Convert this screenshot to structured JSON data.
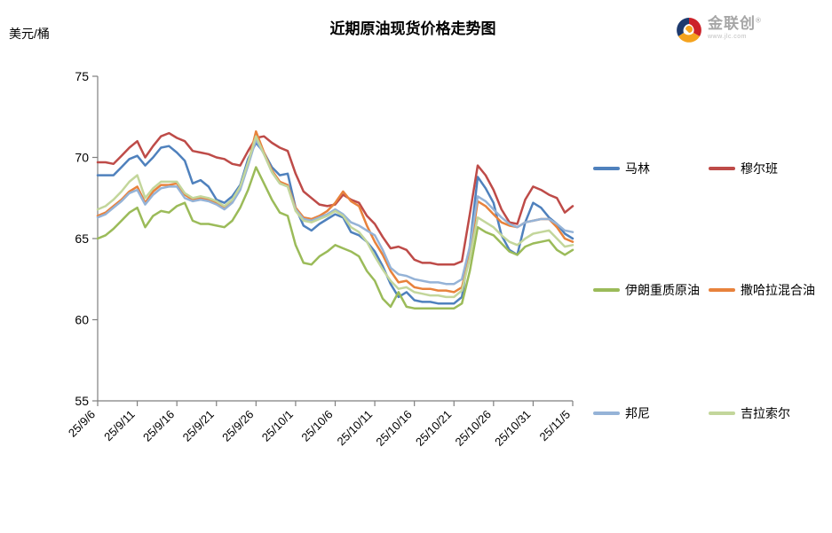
{
  "page": {
    "chart_title": "近期原油现货价格走势图",
    "unit_label": "美元/桶"
  },
  "logo": {
    "name": "金联创",
    "registered": "®",
    "subtext": "www.jlc.com",
    "icon_colors": {
      "blue": "#1d3a6e",
      "red": "#cc2229",
      "yellow": "#f5a31e"
    }
  },
  "chart_data": {
    "type": "line",
    "title": "近期原油现货价格走势图",
    "xlabel": "",
    "ylabel": "美元/桶",
    "ylim": [
      55,
      75
    ],
    "yticks": [
      55,
      60,
      65,
      70,
      75
    ],
    "grid": false,
    "legend_position": "right",
    "xtick_every": 5,
    "xtick_labels": [
      "25/9/6",
      "25/9/11",
      "25/9/16",
      "25/9/21",
      "25/9/26",
      "25/10/1",
      "25/10/6",
      "25/10/11",
      "25/10/16",
      "25/10/21",
      "25/10/26",
      "25/10/31",
      "25/11/5"
    ],
    "x": [
      "25/9/6",
      "25/9/7",
      "25/9/8",
      "25/9/9",
      "25/9/10",
      "25/9/11",
      "25/9/12",
      "25/9/13",
      "25/9/14",
      "25/9/15",
      "25/9/16",
      "25/9/17",
      "25/9/18",
      "25/9/19",
      "25/9/20",
      "25/9/21",
      "25/9/22",
      "25/9/23",
      "25/9/24",
      "25/9/25",
      "25/9/26",
      "25/9/27",
      "25/9/28",
      "25/9/29",
      "25/9/30",
      "25/10/1",
      "25/10/2",
      "25/10/3",
      "25/10/4",
      "25/10/5",
      "25/10/6",
      "25/10/7",
      "25/10/8",
      "25/10/9",
      "25/10/10",
      "25/10/11",
      "25/10/12",
      "25/10/13",
      "25/10/14",
      "25/10/15",
      "25/10/16",
      "25/10/17",
      "25/10/18",
      "25/10/19",
      "25/10/20",
      "25/10/21",
      "25/10/22",
      "25/10/23",
      "25/10/24",
      "25/10/25",
      "25/10/26",
      "25/10/27",
      "25/10/28",
      "25/10/29",
      "25/10/30",
      "25/10/31",
      "25/11/1",
      "25/11/2",
      "25/11/3",
      "25/11/4",
      "25/11/5"
    ],
    "series": [
      {
        "name": "马林",
        "color": "#4F81BD",
        "values": [
          68.9,
          68.9,
          68.9,
          69.4,
          69.9,
          70.1,
          69.5,
          70.0,
          70.6,
          70.7,
          70.3,
          69.8,
          68.4,
          68.6,
          68.2,
          67.4,
          67.2,
          67.6,
          68.3,
          69.9,
          70.9,
          70.3,
          69.4,
          68.9,
          69.0,
          66.9,
          65.8,
          65.5,
          65.9,
          66.2,
          66.5,
          66.3,
          65.4,
          65.2,
          64.8,
          64.2,
          63.3,
          62.2,
          61.4,
          61.7,
          61.2,
          61.1,
          61.1,
          61.0,
          61.0,
          61.0,
          61.4,
          64.5,
          68.8,
          68.1,
          67.2,
          65.2,
          64.3,
          64.0,
          66.0,
          67.2,
          66.9,
          66.3,
          65.9,
          65.3,
          65.0
        ]
      },
      {
        "name": "穆尔班",
        "color": "#BE4B48",
        "values": [
          69.7,
          69.7,
          69.6,
          70.1,
          70.6,
          71.0,
          70.0,
          70.7,
          71.3,
          71.5,
          71.2,
          71.0,
          70.4,
          70.3,
          70.2,
          70.0,
          69.9,
          69.6,
          69.5,
          70.4,
          71.2,
          71.3,
          70.9,
          70.6,
          70.4,
          69.0,
          67.9,
          67.5,
          67.1,
          67.0,
          67.1,
          67.7,
          67.4,
          67.2,
          66.4,
          65.9,
          65.1,
          64.4,
          64.5,
          64.3,
          63.7,
          63.5,
          63.5,
          63.4,
          63.4,
          63.4,
          63.6,
          66.5,
          69.5,
          68.9,
          68.0,
          66.8,
          66.0,
          65.9,
          67.4,
          68.2,
          68.0,
          67.7,
          67.5,
          66.6,
          67.0
        ]
      },
      {
        "name": "伊朗重质原油",
        "color": "#9BBB59",
        "values": [
          65.0,
          65.2,
          65.6,
          66.1,
          66.6,
          66.9,
          65.7,
          66.4,
          66.7,
          66.6,
          67.0,
          67.2,
          66.1,
          65.9,
          65.9,
          65.8,
          65.7,
          66.1,
          66.9,
          68.0,
          69.4,
          68.4,
          67.4,
          66.6,
          66.4,
          64.6,
          63.5,
          63.4,
          63.9,
          64.2,
          64.6,
          64.4,
          64.2,
          63.9,
          63.0,
          62.4,
          61.3,
          60.8,
          61.7,
          60.8,
          60.7,
          60.7,
          60.7,
          60.7,
          60.7,
          60.7,
          61.0,
          63.0,
          65.7,
          65.4,
          65.2,
          64.7,
          64.2,
          64.0,
          64.5,
          64.7,
          64.8,
          64.9,
          64.3,
          64.0,
          64.3
        ]
      },
      {
        "name": "撒哈拉混合油",
        "color": "#E8823C",
        "values": [
          66.4,
          66.6,
          67.0,
          67.4,
          67.9,
          68.2,
          67.2,
          67.9,
          68.3,
          68.3,
          68.4,
          67.7,
          67.4,
          67.5,
          67.4,
          67.2,
          66.9,
          67.3,
          68.1,
          69.6,
          71.6,
          70.3,
          69.2,
          68.5,
          68.3,
          66.9,
          66.3,
          66.2,
          66.4,
          66.7,
          67.2,
          67.9,
          67.3,
          67.0,
          65.8,
          64.8,
          64.0,
          63.0,
          62.3,
          62.4,
          62.0,
          61.9,
          61.9,
          61.8,
          61.8,
          61.7,
          62.0,
          64.0,
          67.3,
          67.0,
          66.5,
          66.0,
          65.8,
          65.7,
          66.0,
          66.1,
          66.2,
          66.2,
          65.7,
          65.0,
          64.8
        ]
      },
      {
        "name": "邦尼",
        "color": "#95B3D7",
        "values": [
          66.3,
          66.5,
          66.9,
          67.3,
          67.8,
          68.0,
          67.1,
          67.7,
          68.1,
          68.2,
          68.2,
          67.5,
          67.3,
          67.4,
          67.3,
          67.1,
          66.8,
          67.2,
          68.0,
          69.5,
          71.1,
          70.2,
          69.1,
          68.4,
          68.2,
          66.8,
          66.2,
          66.1,
          66.3,
          66.5,
          66.8,
          66.5,
          66.0,
          65.8,
          65.5,
          65.2,
          64.3,
          63.2,
          62.8,
          62.7,
          62.5,
          62.4,
          62.3,
          62.3,
          62.2,
          62.2,
          62.5,
          64.5,
          67.6,
          67.3,
          66.8,
          66.3,
          65.9,
          65.7,
          66.0,
          66.1,
          66.2,
          66.2,
          65.9,
          65.5,
          65.4
        ]
      },
      {
        "name": "吉拉索尔",
        "color": "#C3D69B",
        "values": [
          66.8,
          67.0,
          67.4,
          67.9,
          68.5,
          68.9,
          67.5,
          68.1,
          68.5,
          68.5,
          68.5,
          67.8,
          67.5,
          67.6,
          67.5,
          67.3,
          67.0,
          67.4,
          68.2,
          69.7,
          71.3,
          70.2,
          69.1,
          68.4,
          68.2,
          66.7,
          66.1,
          66.0,
          66.2,
          66.4,
          66.7,
          66.4,
          65.7,
          65.4,
          64.8,
          63.9,
          63.1,
          62.4,
          61.9,
          62.0,
          61.7,
          61.6,
          61.5,
          61.5,
          61.4,
          61.4,
          61.8,
          63.8,
          66.3,
          66.0,
          65.7,
          65.2,
          64.8,
          64.6,
          65.0,
          65.3,
          65.4,
          65.5,
          65.0,
          64.5,
          64.6
        ]
      }
    ]
  }
}
